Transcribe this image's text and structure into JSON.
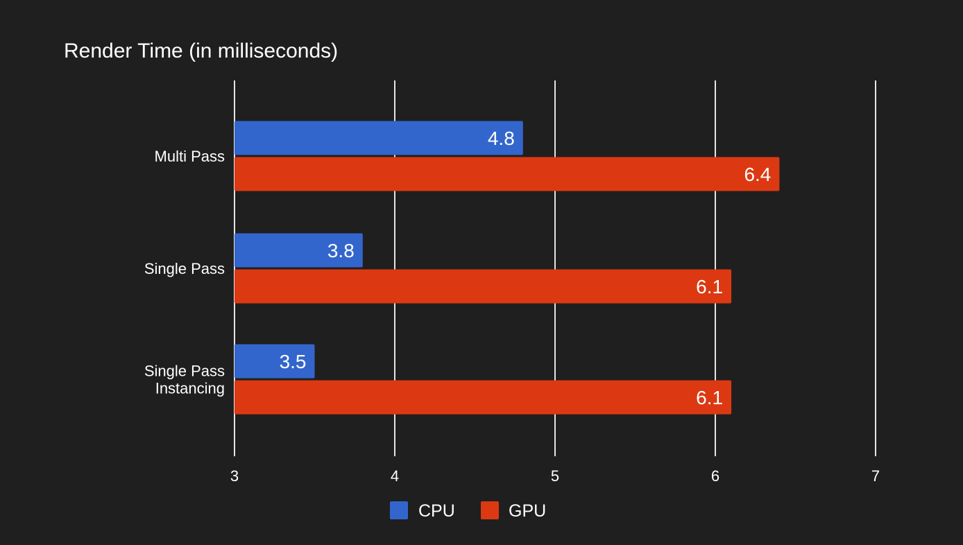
{
  "colors": {
    "background": "#1f1f1f",
    "cpu": "#3366cc",
    "gpu": "#dc3912",
    "grid": "#e6e6e6",
    "text": "#ffffff"
  },
  "chart_data": {
    "type": "bar",
    "orientation": "horizontal",
    "title": "Render Time (in milliseconds)",
    "xlabel": "",
    "ylabel": "",
    "categories": [
      [
        "Multi Pass"
      ],
      [
        "Single Pass"
      ],
      [
        "Single Pass",
        "Instancing"
      ]
    ],
    "series": [
      {
        "name": "CPU",
        "color": "#3366cc",
        "values": [
          4.8,
          3.8,
          3.5
        ]
      },
      {
        "name": "GPU",
        "color": "#dc3912",
        "values": [
          6.4,
          6.1,
          6.1
        ]
      }
    ],
    "xlim": [
      3,
      7
    ],
    "xticks": [
      "3",
      "4",
      "5",
      "6",
      "7"
    ],
    "data_labels": [
      [
        "4.8",
        "3.8",
        "3.5"
      ],
      [
        "6.4",
        "6.1",
        "6.1"
      ]
    ],
    "grid": true,
    "legend": "bottom"
  }
}
